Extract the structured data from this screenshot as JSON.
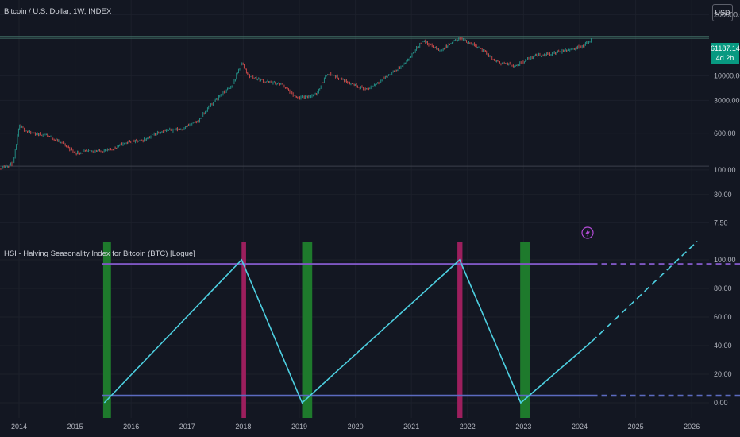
{
  "main_title": "Bitcoin / U.S. Dollar, 1W, INDEX",
  "currency": "USD",
  "price_badge": {
    "price": "61187.14",
    "countdown": "4d 2h"
  },
  "indicator_title": "HSI - Halving Seasonality Index for Bitcoin (BTC) [Logue]",
  "colors": {
    "background": "#131722",
    "up_candle": "#26a69a",
    "down_candle": "#ef5350",
    "index_line": "#4dd0e1",
    "upper_band": "#7e57c2",
    "lower_band": "#5c6bc0",
    "halving_bar": "#1e7a2c",
    "peak_bar": "#9c1f5d",
    "price_badge": "#089981"
  },
  "chart_data": [
    {
      "type": "candlestick",
      "title": "Bitcoin / U.S. Dollar, 1W, INDEX",
      "scale": "log",
      "ylim": [
        3.5,
        300000
      ],
      "y_ticks": [
        200000,
        10000,
        3000,
        600,
        100,
        30,
        7.5
      ],
      "y_tick_labels": [
        "200000.00",
        "10000.00",
        "3000.00",
        "600.00",
        "100.00",
        "30.00",
        "7.50"
      ],
      "horizontal_lines": [
        69000,
        63000,
        120
      ],
      "x": [
        2013.6,
        2013.9,
        2014.0,
        2014.2,
        2014.5,
        2014.8,
        2015.0,
        2015.3,
        2015.6,
        2015.9,
        2016.2,
        2016.5,
        2016.9,
        2017.2,
        2017.4,
        2017.6,
        2017.8,
        2017.97,
        2018.1,
        2018.4,
        2018.7,
        2018.95,
        2019.3,
        2019.5,
        2019.8,
        2020.2,
        2020.6,
        2020.9,
        2021.2,
        2021.5,
        2021.85,
        2022.2,
        2022.5,
        2022.85,
        2023.2,
        2023.5,
        2023.85,
        2024.05,
        2024.22
      ],
      "values": [
        100,
        140,
        850,
        600,
        550,
        350,
        230,
        250,
        260,
        380,
        420,
        650,
        750,
        1100,
        2300,
        4000,
        6000,
        19000,
        10000,
        7500,
        6500,
        3300,
        4000,
        11500,
        8000,
        5000,
        10500,
        18500,
        57000,
        34000,
        64000,
        41000,
        20000,
        16500,
        27000,
        29500,
        37000,
        43000,
        61187
      ]
    },
    {
      "type": "line",
      "title": "HSI - Halving Seasonality Index for Bitcoin (BTC) [Logue]",
      "ylim": [
        -8,
        118
      ],
      "y_ticks": [
        0,
        20,
        40,
        60,
        80,
        100
      ],
      "y_tick_labels": [
        "0.00",
        "20.00",
        "40.00",
        "60.00",
        "80.00",
        "100.00"
      ],
      "x_ticks": [
        2014,
        2015,
        2016,
        2017,
        2018,
        2019,
        2020,
        2021,
        2022,
        2023,
        2024,
        2025,
        2026
      ],
      "x_tick_labels": [
        "2014",
        "2015",
        "2016",
        "2017",
        "2018",
        "2019",
        "2020",
        "2021",
        "2022",
        "2023",
        "2024",
        "2025",
        "2026"
      ],
      "xlim": [
        2013.7,
        2026.9
      ],
      "series": [
        {
          "style": "solid",
          "x": [
            2015.52,
            2017.97,
            2019.05,
            2021.86,
            2022.95,
            2024.22
          ],
          "values": [
            0,
            100,
            0,
            100,
            0,
            43
          ]
        },
        {
          "style": "dashed",
          "x": [
            2024.22,
            2026.1
          ],
          "values": [
            43,
            113
          ]
        }
      ],
      "bands": [
        {
          "level": 97,
          "x_end_solid": 2024.22,
          "x_end_dashed": 2026.9
        },
        {
          "level": 5,
          "x_end_solid": 2024.22,
          "x_end_dashed": 2026.9
        }
      ],
      "vertical_bars": [
        {
          "type": "halving",
          "x_start": 2015.5,
          "x_end": 2015.64
        },
        {
          "type": "peak",
          "x_start": 2017.97,
          "x_end": 2018.05
        },
        {
          "type": "halving",
          "x_start": 2019.05,
          "x_end": 2019.23
        },
        {
          "type": "peak",
          "x_start": 2021.82,
          "x_end": 2021.91
        },
        {
          "type": "halving",
          "x_start": 2022.94,
          "x_end": 2023.12
        }
      ]
    }
  ]
}
